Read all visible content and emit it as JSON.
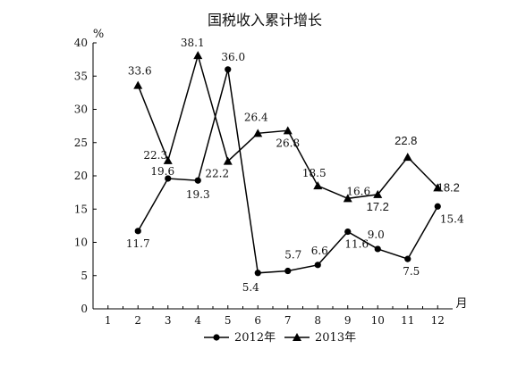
{
  "chart_data": {
    "type": "line",
    "title": "国税收入累计增长",
    "xlabel": "月",
    "ylabel": "%",
    "x": [
      1,
      2,
      3,
      4,
      5,
      6,
      7,
      8,
      9,
      10,
      11,
      12
    ],
    "xlim": [
      1,
      12
    ],
    "ylim": [
      0,
      40
    ],
    "yticks": [
      0,
      5,
      10,
      15,
      20,
      25,
      30,
      35,
      40
    ],
    "grid": false,
    "legend_position": "bottom",
    "series": [
      {
        "name": "2012年",
        "marker": "circle",
        "points": [
          {
            "x": 2,
            "y": 11.7,
            "label": "11.7"
          },
          {
            "x": 3,
            "y": 19.6,
            "label": "19.6"
          },
          {
            "x": 4,
            "y": 19.3,
            "label": "19.3"
          },
          {
            "x": 5,
            "y": 36.0,
            "label": "36.0"
          },
          {
            "x": 6,
            "y": 5.4,
            "label": "5.4"
          },
          {
            "x": 7,
            "y": 5.7,
            "label": "5.7"
          },
          {
            "x": 8,
            "y": 6.6,
            "label": "6.6"
          },
          {
            "x": 9,
            "y": 11.6,
            "label": "11.6"
          },
          {
            "x": 10,
            "y": 9.0,
            "label": "9.0"
          },
          {
            "x": 11,
            "y": 7.5,
            "label": "7.5"
          },
          {
            "x": 12,
            "y": 15.4,
            "label": "15.4"
          }
        ]
      },
      {
        "name": "2013年",
        "marker": "triangle",
        "points": [
          {
            "x": 2,
            "y": 33.6,
            "label": "33.6"
          },
          {
            "x": 3,
            "y": 22.3,
            "label": "22.3"
          },
          {
            "x": 4,
            "y": 38.1,
            "label": "38.1"
          },
          {
            "x": 5,
            "y": 22.2,
            "label": "22.2"
          },
          {
            "x": 6,
            "y": 26.4,
            "label": "26.4"
          },
          {
            "x": 7,
            "y": 26.8,
            "label": "26.8"
          },
          {
            "x": 8,
            "y": 18.5,
            "label": "18.5"
          },
          {
            "x": 9,
            "y": 16.6,
            "label": "16.6"
          },
          {
            "x": 10,
            "y": 17.2,
            "label": "17.2"
          },
          {
            "x": 11,
            "y": 22.8,
            "label": "22.8"
          },
          {
            "x": 12,
            "y": 18.2,
            "label": "18.2"
          }
        ]
      }
    ]
  }
}
